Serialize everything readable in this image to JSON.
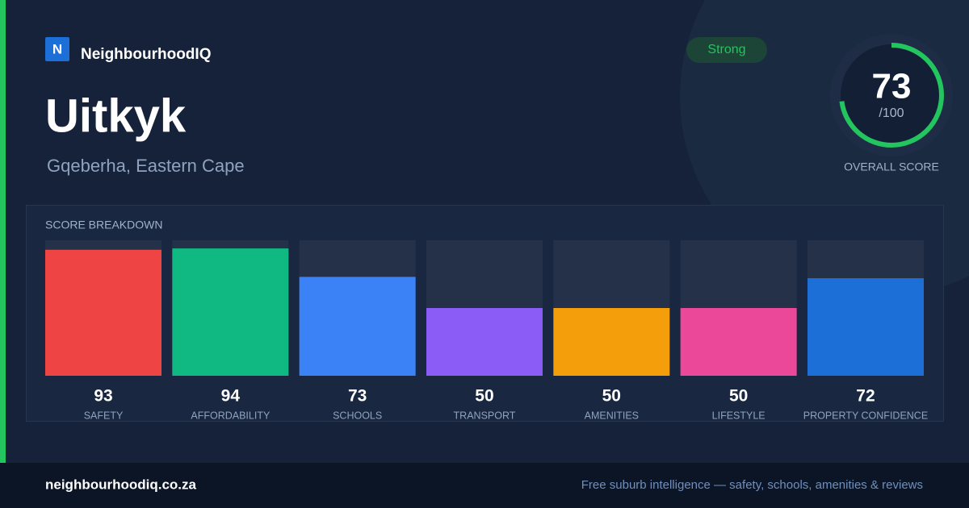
{
  "brand": {
    "logo": "N",
    "name": "NeighbourhoodIQ"
  },
  "header": {
    "title": "Uitkyk",
    "subtitle": "Gqeberha, Eastern Cape",
    "badge": "Strong"
  },
  "score": {
    "value": 73,
    "max": {
      "value": 100,
      "label": "/100"
    },
    "label": "OVERALL SCORE",
    "color": "#22c55e"
  },
  "chart_data": {
    "type": "bar",
    "title": "SCORE BREAKDOWN",
    "categories": [
      "SAFETY",
      "AFFORDABILITY",
      "SCHOOLS",
      "TRANSPORT",
      "AMENITIES",
      "LIFESTYLE",
      "PROPERTY CONFIDENCE"
    ],
    "values": [
      93,
      94,
      73,
      50,
      50,
      50,
      72
    ],
    "colors": [
      "#ef4444",
      "#10b981",
      "#3b82f6",
      "#8b5cf6",
      "#f59e0b",
      "#ec4899",
      "#1d6fd8"
    ],
    "ylim": [
      0,
      100
    ]
  },
  "footer": {
    "site": "neighbourhoodiq.co.za",
    "tagline": "Free suburb intelligence — safety, schools, amenities & reviews"
  }
}
